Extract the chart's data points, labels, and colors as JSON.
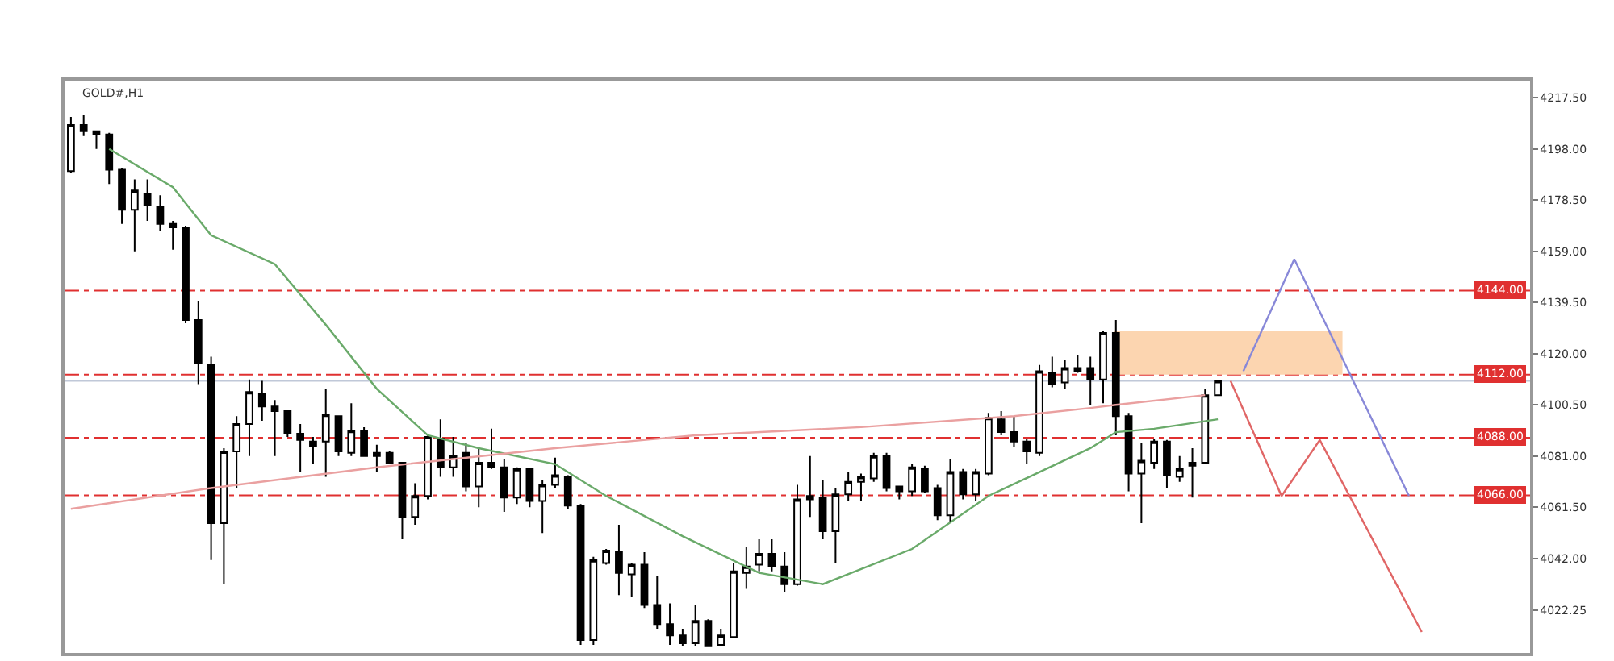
{
  "chart_data": {
    "type": "candlestick",
    "categories": [
      null,
      null,
      null,
      null,
      null,
      null,
      null,
      null,
      null,
      null,
      null,
      null,
      null,
      null,
      null,
      null,
      null,
      null,
      null,
      null,
      null,
      null,
      null,
      null,
      null,
      null,
      null,
      null,
      null,
      null,
      null,
      null,
      null,
      null,
      null,
      null,
      null,
      null,
      null,
      null,
      null,
      null,
      null,
      null,
      null,
      null,
      null,
      null,
      null,
      null,
      null,
      null,
      null,
      null,
      null,
      null,
      null,
      null,
      null,
      null,
      null,
      null,
      null,
      null,
      null,
      null,
      null,
      null,
      null,
      null,
      null,
      null,
      null,
      null,
      null,
      null,
      null,
      null,
      null,
      null,
      null,
      null,
      null,
      null,
      null,
      null,
      null,
      null,
      null,
      null,
      null,
      null,
      null,
      null,
      null,
      null,
      null,
      null,
      null,
      null,
      null,
      null,
      null,
      null,
      null,
      null,
      null,
      null,
      null,
      null,
      null,
      null,
      null,
      null,
      null
    ],
    "ylim": [
      4006,
      4224
    ],
    "yticks": [
      {
        "value": 4217.5,
        "label": "4217.50"
      },
      {
        "value": 4198,
        "label": "4198.00"
      },
      {
        "value": 4178.5,
        "label": "4178.50"
      },
      {
        "value": 4159,
        "label": "4159.00"
      },
      {
        "value": 4139.5,
        "label": "4139.50"
      },
      {
        "value": 4120,
        "label": "4120.00"
      },
      {
        "value": 4100.5,
        "label": "4100.50"
      },
      {
        "value": 4081,
        "label": "4081.00"
      },
      {
        "value": 4061.5,
        "label": "4061.50"
      },
      {
        "value": 4042,
        "label": "4042.00"
      },
      {
        "value": 4022.25,
        "label": "4022.25"
      }
    ],
    "tick_labels": "y",
    "grid": false,
    "annotations": [
      "GOLD#,H1"
    ],
    "ref_lines": [
      {
        "axis": "y",
        "value": 4144,
        "label": "4144.00",
        "color": "#e03030",
        "line_style": "dashdot"
      },
      {
        "axis": "y",
        "value": 4112,
        "label": "4112.00",
        "color": "#e03030",
        "line_style": "dashdot"
      },
      {
        "axis": "y",
        "value": 4088,
        "label": "4088.00",
        "color": "#e03030",
        "line_style": "dashdot"
      },
      {
        "axis": "y",
        "value": 4066,
        "label": "4066.00",
        "color": "#e03030",
        "line_style": "dashdot"
      },
      {
        "axis": "y",
        "value": 4109.6,
        "color": "#c0c8d8",
        "line_style": "solid"
      }
    ],
    "bands": [
      {
        "axis": "y",
        "from": 4112,
        "to": 4128.5,
        "color": "#fcd5b0"
      }
    ],
    "series": [
      {
        "type": "line",
        "color": "#6aaa6a",
        "values": [
          null,
          null,
          null,
          4198.0,
          null,
          null,
          null,
          null,
          4183.4,
          null,
          null,
          4165.1,
          null,
          null,
          null,
          null,
          4154.1,
          null,
          null,
          null,
          4131.0,
          null,
          null,
          null,
          4106.6,
          null,
          null,
          null,
          4088.9,
          null,
          null,
          null,
          4084.0,
          null,
          null,
          null,
          null,
          null,
          4077.9,
          null,
          null,
          null,
          4065.8,
          null,
          null,
          null,
          null,
          null,
          4050.5,
          null,
          null,
          null,
          null,
          null,
          4036.5,
          null,
          null,
          null,
          null,
          4032.2,
          null,
          null,
          null,
          null,
          null,
          null,
          4045.6,
          null,
          null,
          null,
          null,
          null,
          4065.8,
          null,
          null,
          null,
          null,
          null,
          null,
          null,
          4084.0,
          null,
          4090.1,
          null,
          null,
          4091.4,
          null,
          null,
          null,
          null,
          4095.0,
          null,
          null,
          null,
          null,
          null,
          null,
          null,
          null,
          null,
          null,
          null,
          null,
          null,
          null,
          null,
          null,
          null,
          null,
          null,
          null,
          null,
          null,
          null,
          null
        ]
      },
      {
        "type": "line",
        "color": "#eaa0a0",
        "values": [
          4060.9,
          null,
          null,
          null,
          null,
          null,
          null,
          null,
          null,
          null,
          null,
          4068.8,
          null,
          null,
          null,
          null,
          null,
          null,
          null,
          null,
          null,
          null,
          null,
          null,
          4076.7,
          null,
          null,
          null,
          null,
          null,
          null,
          null,
          null,
          null,
          null,
          null,
          null,
          null,
          4084.0,
          null,
          null,
          null,
          null,
          null,
          null,
          null,
          null,
          null,
          null,
          4088.9,
          null,
          null,
          null,
          null,
          null,
          null,
          null,
          null,
          null,
          null,
          null,
          null,
          4092.0,
          null,
          null,
          null,
          null,
          null,
          null,
          null,
          null,
          null,
          null,
          null,
          4096.2,
          null,
          null,
          null,
          null,
          null,
          4099.3,
          null,
          4100.5,
          null,
          null,
          null,
          null,
          null,
          null,
          4104.2,
          null,
          null,
          null,
          null,
          null,
          null,
          null,
          null,
          null,
          null,
          null,
          null,
          null,
          null,
          null,
          null,
          null,
          null,
          null,
          null,
          null,
          null,
          null,
          null,
          null
        ]
      },
      {
        "type": "line",
        "color": "#e06666",
        "values": [
          null,
          null,
          null,
          null,
          null,
          null,
          null,
          null,
          null,
          null,
          null,
          null,
          null,
          null,
          null,
          null,
          null,
          null,
          null,
          null,
          null,
          null,
          null,
          null,
          null,
          null,
          null,
          null,
          null,
          null,
          null,
          null,
          null,
          null,
          null,
          null,
          null,
          null,
          null,
          null,
          null,
          null,
          null,
          null,
          null,
          null,
          null,
          null,
          null,
          null,
          null,
          null,
          null,
          null,
          null,
          null,
          null,
          null,
          null,
          null,
          null,
          null,
          null,
          null,
          null,
          null,
          null,
          null,
          null,
          null,
          null,
          null,
          null,
          null,
          null,
          null,
          null,
          null,
          null,
          null,
          null,
          null,
          null,
          null,
          null,
          null,
          null,
          null,
          null,
          null,
          null,
          4109.6,
          null,
          null,
          null,
          4065.8,
          null,
          null,
          4087.1,
          null,
          null,
          null,
          null,
          null,
          null,
          null,
          4014.0,
          null,
          null,
          null,
          null,
          null,
          null,
          null,
          null
        ]
      },
      {
        "type": "line",
        "color": "#8888d8",
        "values": [
          null,
          null,
          null,
          null,
          null,
          null,
          null,
          null,
          null,
          null,
          null,
          null,
          null,
          null,
          null,
          null,
          null,
          null,
          null,
          null,
          null,
          null,
          null,
          null,
          null,
          null,
          null,
          null,
          null,
          null,
          null,
          null,
          null,
          null,
          null,
          null,
          null,
          null,
          null,
          null,
          null,
          null,
          null,
          null,
          null,
          null,
          null,
          null,
          null,
          null,
          null,
          null,
          null,
          null,
          null,
          null,
          null,
          null,
          null,
          null,
          null,
          null,
          null,
          null,
          null,
          null,
          null,
          null,
          null,
          null,
          null,
          null,
          null,
          null,
          null,
          null,
          null,
          null,
          null,
          null,
          null,
          null,
          null,
          null,
          null,
          null,
          null,
          null,
          null,
          null,
          null,
          null,
          4113.3,
          null,
          null,
          null,
          4156.0,
          null,
          null,
          null,
          null,
          null,
          null,
          null,
          null,
          4065.8,
          null,
          null,
          null,
          null,
          null,
          null,
          null,
          null,
          null
        ]
      },
      {
        "type": "candlestick",
        "color": "#000000",
        "ohlc": [
          [
            4189.5,
            4210.2,
            4188.9,
            4207.1
          ],
          [
            4207.1,
            4210.8,
            4202.9,
            4204.7
          ],
          [
            4204.7,
            4204.7,
            4198.0,
            4203.5
          ],
          [
            4203.5,
            4204.1,
            4184.6,
            4190.1
          ],
          [
            4190.1,
            4190.7,
            4169.4,
            4174.8
          ],
          [
            4174.8,
            4186.4,
            4159.0,
            4182.2
          ],
          [
            4180.9,
            4186.4,
            4170.6,
            4176.7
          ],
          [
            4176.1,
            4180.3,
            4166.9,
            4169.4
          ],
          [
            4169.4,
            4170.6,
            4159.6,
            4168.1
          ],
          [
            4168.1,
            4168.7,
            4131.6,
            4132.8
          ],
          [
            4132.8,
            4140.1,
            4108.4,
            4116.3
          ],
          [
            4115.7,
            4118.8,
            4041.4,
            4055.4
          ],
          [
            4055.4,
            4084.0,
            4032.2,
            4082.8
          ],
          [
            4082.8,
            4096.2,
            4068.8,
            4093.2
          ],
          [
            4093.2,
            4110.2,
            4081.0,
            4105.4
          ],
          [
            4104.8,
            4109.6,
            4094.4,
            4099.9
          ],
          [
            4099.9,
            4102.3,
            4081.0,
            4098.1
          ],
          [
            4098.1,
            4098.1,
            4088.3,
            4089.5
          ],
          [
            4089.5,
            4093.2,
            4074.9,
            4087.1
          ],
          [
            4086.5,
            4088.3,
            4077.9,
            4084.6
          ],
          [
            4086.5,
            4106.6,
            4073.1,
            4096.8
          ],
          [
            4096.2,
            4096.2,
            4081.0,
            4082.8
          ],
          [
            4082.2,
            4101.1,
            4081.0,
            4090.7
          ],
          [
            4090.7,
            4092.0,
            4081.0,
            4081.0
          ],
          [
            4081.0,
            4085.3,
            4074.9,
            4082.2
          ],
          [
            4082.2,
            4082.8,
            4077.9,
            4078.5
          ],
          [
            4078.5,
            4078.5,
            4049.3,
            4057.8
          ],
          [
            4057.8,
            4070.6,
            4054.8,
            4065.8
          ],
          [
            4065.8,
            4088.9,
            4064.5,
            4088.3
          ],
          [
            4087.7,
            4095.0,
            4073.1,
            4076.7
          ],
          [
            4076.7,
            4088.3,
            4073.1,
            4081.0
          ],
          [
            4082.2,
            4085.9,
            4067.6,
            4069.4
          ],
          [
            4069.4,
            4084.0,
            4061.5,
            4078.5
          ],
          [
            4078.5,
            4091.4,
            4076.1,
            4076.7
          ],
          [
            4076.7,
            4079.8,
            4059.7,
            4065.2
          ],
          [
            4065.2,
            4076.7,
            4062.7,
            4076.1
          ],
          [
            4076.1,
            4076.1,
            4061.5,
            4063.9
          ],
          [
            4063.9,
            4071.9,
            4051.7,
            4070.0
          ],
          [
            4070.0,
            4080.4,
            4068.8,
            4073.7
          ],
          [
            4073.1,
            4073.7,
            4060.9,
            4062.1
          ],
          [
            4062.1,
            4062.7,
            4009.1,
            4010.9
          ],
          [
            4010.9,
            4042.6,
            4009.1,
            4041.4
          ],
          [
            4040.2,
            4045.6,
            4039.6,
            4045.0
          ],
          [
            4044.4,
            4054.8,
            4028.0,
            4036.5
          ],
          [
            4035.9,
            4040.2,
            4027.4,
            4039.6
          ],
          [
            4039.6,
            4044.4,
            4023.1,
            4024.3
          ],
          [
            4024.3,
            4035.3,
            4015.2,
            4017.0
          ],
          [
            4017.0,
            4024.9,
            4009.1,
            4012.7
          ],
          [
            4012.7,
            4015.2,
            4008.5,
            4009.7
          ],
          [
            4009.7,
            4024.3,
            4008.5,
            4018.2
          ],
          [
            4018.2,
            4018.8,
            4008.5,
            4008.5
          ],
          [
            4009.1,
            4015.2,
            4008.5,
            4012.7
          ],
          [
            4012.1,
            4040.2,
            4011.5,
            4037.1
          ],
          [
            4036.5,
            4046.3,
            4030.4,
            4038.9
          ],
          [
            4039.6,
            4049.3,
            4037.1,
            4043.8
          ],
          [
            4043.8,
            4049.3,
            4037.1,
            4038.9
          ],
          [
            4038.9,
            4044.4,
            4029.2,
            4032.2
          ],
          [
            4032.2,
            4070.0,
            4031.6,
            4064.5
          ],
          [
            4065.8,
            4081.0,
            4057.8,
            4064.5
          ],
          [
            4065.2,
            4071.9,
            4049.3,
            4052.4
          ],
          [
            4052.4,
            4068.8,
            4040.2,
            4066.4
          ],
          [
            4066.4,
            4074.9,
            4063.9,
            4071.2
          ],
          [
            4071.2,
            4074.3,
            4063.9,
            4073.1
          ],
          [
            4072.5,
            4082.2,
            4071.2,
            4081.0
          ],
          [
            4081.0,
            4082.2,
            4067.6,
            4068.8
          ],
          [
            4069.4,
            4069.4,
            4064.5,
            4067.6
          ],
          [
            4067.6,
            4077.9,
            4065.8,
            4076.7
          ],
          [
            4076.1,
            4077.3,
            4067.0,
            4067.6
          ],
          [
            4068.8,
            4070.0,
            4056.6,
            4058.4
          ],
          [
            4058.4,
            4079.8,
            4055.4,
            4074.9
          ],
          [
            4074.9,
            4076.1,
            4064.5,
            4066.4
          ],
          [
            4066.4,
            4076.1,
            4063.9,
            4074.9
          ],
          [
            4074.3,
            4097.4,
            4073.7,
            4095.6
          ],
          [
            4095.0,
            4098.1,
            4088.9,
            4090.1
          ],
          [
            4090.1,
            4096.2,
            4084.6,
            4086.5
          ],
          [
            4086.5,
            4087.7,
            4077.9,
            4082.8
          ],
          [
            4082.2,
            4115.7,
            4081.0,
            4113.3
          ],
          [
            4112.7,
            4118.8,
            4107.2,
            4108.4
          ],
          [
            4109.0,
            4117.6,
            4106.6,
            4114.5
          ],
          [
            4113.3,
            4119.4,
            4112.7,
            4114.5
          ],
          [
            4114.5,
            4118.8,
            4100.5,
            4110.2
          ],
          [
            4110.2,
            4128.5,
            4101.1,
            4127.9
          ],
          [
            4127.9,
            4132.8,
            4088.9,
            4096.2
          ],
          [
            4096.2,
            4097.4,
            4067.6,
            4074.3
          ],
          [
            4074.3,
            4085.9,
            4055.4,
            4079.2
          ],
          [
            4078.5,
            4087.7,
            4076.1,
            4086.5
          ],
          [
            4086.5,
            4087.1,
            4068.8,
            4073.7
          ],
          [
            4073.1,
            4081.0,
            4071.2,
            4076.1
          ],
          [
            4077.3,
            4084.0,
            4065.2,
            4078.5
          ],
          [
            4078.5,
            4106.6,
            4077.9,
            4104.2
          ],
          [
            4104.2,
            4109.6,
            4104.2,
            4109.6
          ],
          null,
          null,
          null,
          null,
          null,
          null,
          null,
          null,
          null,
          null,
          null,
          null,
          null,
          null,
          null,
          null,
          null,
          null,
          null,
          null,
          null,
          null,
          null,
          null
        ]
      }
    ]
  }
}
